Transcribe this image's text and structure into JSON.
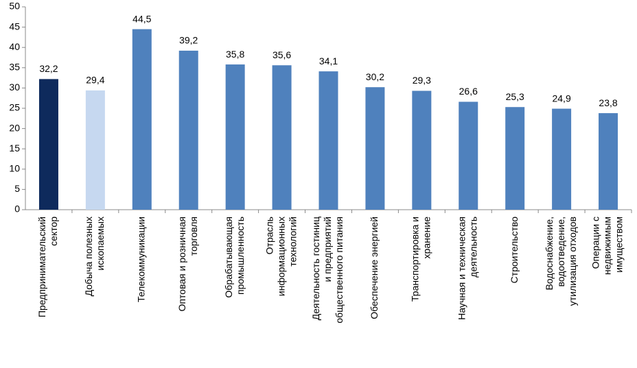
{
  "chart_data": {
    "type": "bar",
    "categories": [
      [
        "Предпринимательский",
        "сектор"
      ],
      [
        "Добыча полезных",
        "ископаемых"
      ],
      [
        "Телекоммуникации"
      ],
      [
        "Оптовая и розничная",
        "торговля"
      ],
      [
        "Обрабатывающая",
        "промышленность"
      ],
      [
        "Отрасль",
        "информационных",
        "технологий"
      ],
      [
        "Деятельность гостиниц",
        "и предприятий",
        "общественного питания"
      ],
      [
        "Обеспечение энергией"
      ],
      [
        "Транспортировка и",
        "хранение"
      ],
      [
        "Научная и техническая",
        "деятельность"
      ],
      [
        "Строительство"
      ],
      [
        "Водоснабжение,",
        "водоотведение,",
        "утилизация отходов"
      ],
      [
        "Операции с",
        "недвижимым",
        "имуществом"
      ]
    ],
    "values": [
      32.2,
      29.4,
      44.5,
      39.2,
      35.8,
      35.6,
      34.1,
      30.2,
      29.3,
      26.6,
      25.3,
      24.9,
      23.8
    ],
    "value_labels": [
      "32,2",
      "29,4",
      "44,5",
      "39,2",
      "35,8",
      "35,6",
      "34,1",
      "30,2",
      "29,3",
      "26,6",
      "25,3",
      "24,9",
      "23,8"
    ],
    "colors": [
      "#0e2a5c",
      "#c6d8f0",
      "#4f81bd",
      "#4f81bd",
      "#4f81bd",
      "#4f81bd",
      "#4f81bd",
      "#4f81bd",
      "#4f81bd",
      "#4f81bd",
      "#4f81bd",
      "#4f81bd",
      "#4f81bd"
    ],
    "ylim": [
      0,
      50
    ],
    "yticks": [
      0,
      5,
      10,
      15,
      20,
      25,
      30,
      35,
      40,
      45,
      50
    ],
    "grid": false
  }
}
